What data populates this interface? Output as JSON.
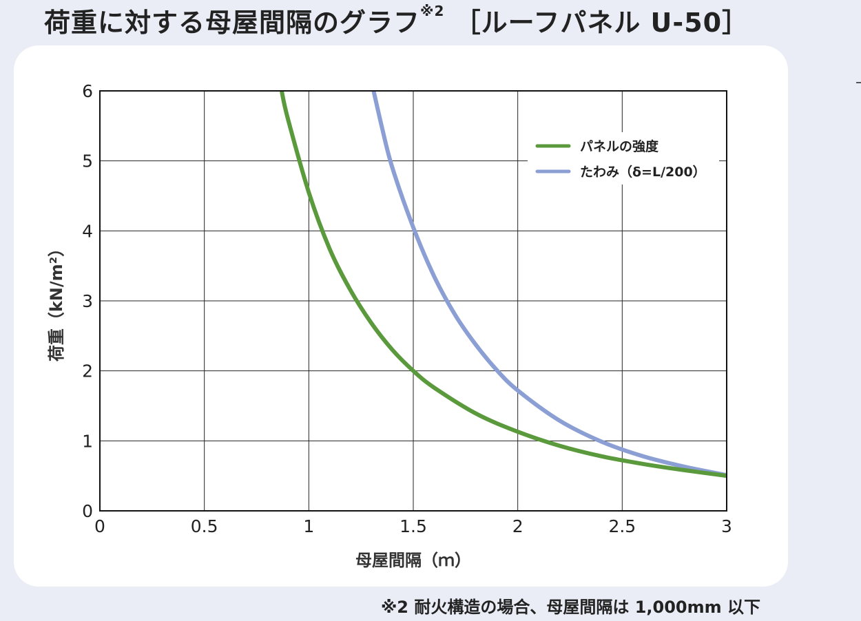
{
  "title": {
    "main": "荷重に対する母屋間隔のグラフ",
    "note_mark": "※2",
    "product": "［ルーフパネル U-50］"
  },
  "footnote": "※2  耐火構造の場合、母屋間隔は 1,000mm 以下",
  "colors": {
    "background": "#eaedf6",
    "card": "#ffffff",
    "strength": "#5a9a3c",
    "deflection": "#8b9fd4"
  },
  "chart_data": {
    "type": "line",
    "xlabel": "母屋間隔（ｍ）",
    "ylabel": "荷重（kN/m²）",
    "xlim": [
      0,
      3
    ],
    "ylim": [
      0,
      6
    ],
    "x_ticks": [
      "0",
      "0.5",
      "1",
      "1.5",
      "2",
      "2.5",
      "3"
    ],
    "y_ticks": [
      "0",
      "1",
      "2",
      "3",
      "4",
      "5",
      "6"
    ],
    "grid": true,
    "legend_position": "top-right",
    "series": [
      {
        "name": "パネルの強度",
        "color": "#5a9a3c",
        "x": [
          0.87,
          0.9,
          1.0,
          1.1,
          1.2,
          1.3,
          1.4,
          1.5,
          1.6,
          1.8,
          2.0,
          2.2,
          2.4,
          2.6,
          2.8,
          3.0
        ],
        "y": [
          6.0,
          5.6,
          4.55,
          3.74,
          3.15,
          2.68,
          2.3,
          2.0,
          1.76,
          1.39,
          1.13,
          0.93,
          0.78,
          0.67,
          0.58,
          0.5
        ]
      },
      {
        "name": "たわみ（δ=L/200）",
        "color": "#8b9fd4",
        "x": [
          1.31,
          1.35,
          1.4,
          1.5,
          1.6,
          1.7,
          1.8,
          1.9,
          2.0,
          2.2,
          2.4,
          2.6,
          2.8,
          3.0
        ],
        "y": [
          6.0,
          5.48,
          4.9,
          4.05,
          3.35,
          2.8,
          2.37,
          2.01,
          1.72,
          1.29,
          0.99,
          0.78,
          0.63,
          0.51
        ]
      }
    ]
  }
}
